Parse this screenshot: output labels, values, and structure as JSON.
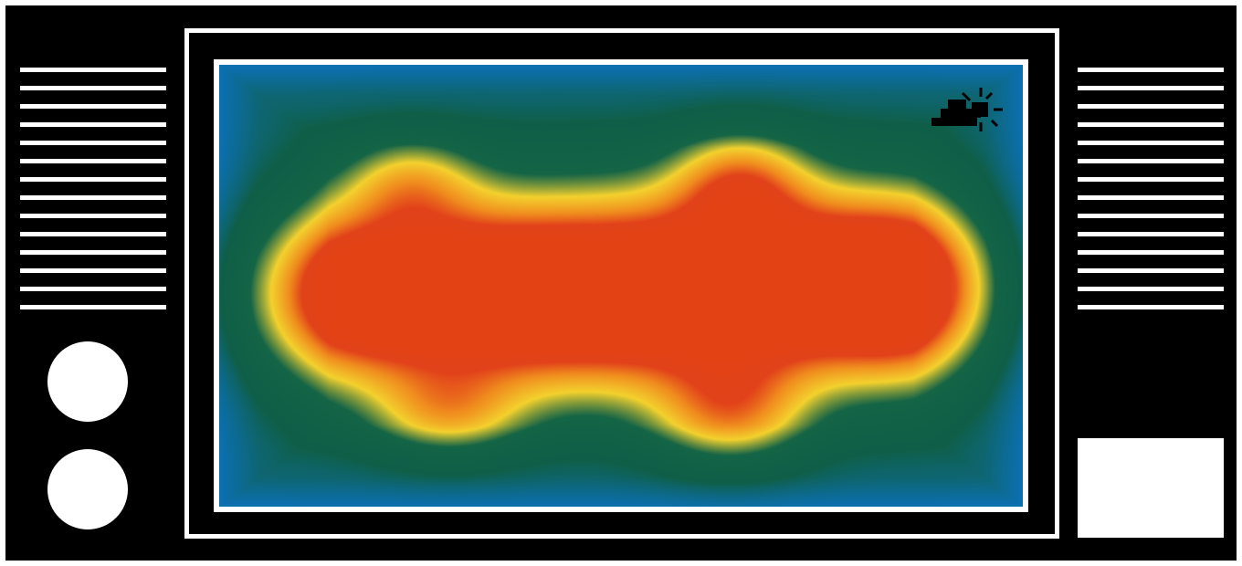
{
  "device": {
    "frame_color": "#000000",
    "accent_color": "#ffffff"
  },
  "left_panel": {
    "vent_line_count": 14,
    "knobs": [
      "knob",
      "knob"
    ]
  },
  "right_panel": {
    "vent_line_count": 14,
    "button_icon": "blank-rectangle"
  },
  "screen": {
    "content": "heatmap",
    "overlay_icon": "cloud-sun-weather-icon",
    "heatmap_palette": [
      "#0a78e6",
      "#0f5f48",
      "#f3d12e",
      "#e2421a"
    ]
  }
}
